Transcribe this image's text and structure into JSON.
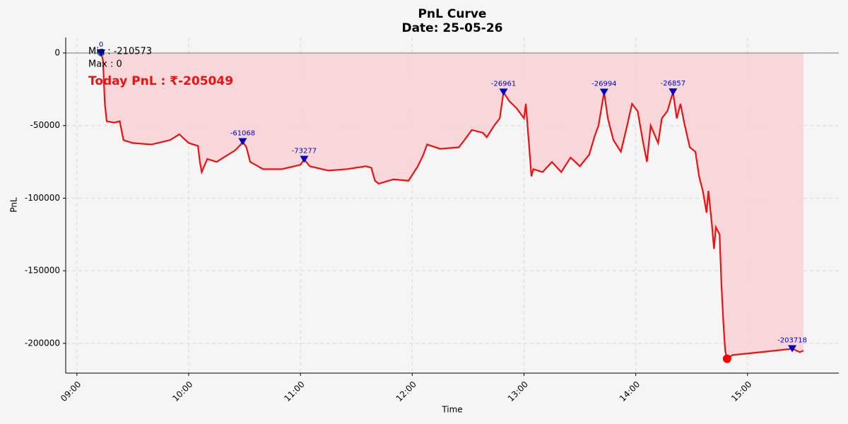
{
  "chart_data": {
    "type": "line",
    "title": "PnL Curve",
    "subtitle": "Date: 25-05-26",
    "x_label": "Time",
    "y_label": "PnL",
    "color": "#ee1111",
    "fill_color": "#f7d4d7",
    "grid": true,
    "annotations": [
      "Min : -210573",
      "Max : 0"
    ],
    "highlight": "Today PnL : ₹-205049",
    "x": [
      "09:13",
      "09:14",
      "09:15",
      "09:16",
      "09:20",
      "09:23",
      "09:25",
      "09:30",
      "09:40",
      "09:50",
      "09:55",
      "10:00",
      "10:05",
      "10:06",
      "10:07",
      "10:10",
      "10:15",
      "10:20",
      "10:25",
      "10:28",
      "10:29",
      "10:31",
      "10:33",
      "10:40",
      "10:50",
      "11:00",
      "11:02",
      "11:05",
      "11:15",
      "11:25",
      "11:35",
      "11:38",
      "11:40",
      "11:42",
      "11:50",
      "11:58",
      "12:03",
      "12:06",
      "12:08",
      "12:15",
      "12:25",
      "12:28",
      "12:32",
      "12:38",
      "12:40",
      "12:44",
      "12:47",
      "12:48",
      "12:49",
      "12:52",
      "12:56",
      "13:00",
      "13:01",
      "13:04",
      "13:05",
      "13:10",
      "13:15",
      "13:20",
      "13:25",
      "13:30",
      "13:35",
      "13:38",
      "13:40",
      "13:43",
      "13:45",
      "13:48",
      "13:52",
      "13:55",
      "13:58",
      "14:01",
      "14:04",
      "14:06",
      "14:08",
      "14:12",
      "14:14",
      "14:17",
      "14:20",
      "14:22",
      "14:24",
      "14:26",
      "14:29",
      "14:32",
      "14:34",
      "14:36",
      "14:38",
      "14:39",
      "14:41",
      "14:42",
      "14:43",
      "14:45",
      "14:46",
      "14:47",
      "14:48",
      "14:49",
      "14:52",
      "15:00",
      "15:15",
      "15:24",
      "15:28",
      "15:30"
    ],
    "values": [
      0,
      -5000,
      -35000,
      -47000,
      -48000,
      -47000,
      -60000,
      -62000,
      -63000,
      -60000,
      -56000,
      -62000,
      -64000,
      -75000,
      -82000,
      -73000,
      -75000,
      -71000,
      -67000,
      -63000,
      -61068,
      -65000,
      -75000,
      -80000,
      -80000,
      -77000,
      -73277,
      -78000,
      -81000,
      -80000,
      -78000,
      -79000,
      -88000,
      -90000,
      -87000,
      -88000,
      -78000,
      -70000,
      -63000,
      -66000,
      -65000,
      -60000,
      -53000,
      -55000,
      -58000,
      -50000,
      -45000,
      -36000,
      -26961,
      -33000,
      -38000,
      -45000,
      -35000,
      -85000,
      -80000,
      -82000,
      -75000,
      -82000,
      -72000,
      -78000,
      -70000,
      -57000,
      -50000,
      -26994,
      -45000,
      -60000,
      -68000,
      -52000,
      -35000,
      -40000,
      -62000,
      -75000,
      -50000,
      -62000,
      -45000,
      -40000,
      -26857,
      -45000,
      -35000,
      -48000,
      -65000,
      -68000,
      -85000,
      -95000,
      -110000,
      -95000,
      -120000,
      -135000,
      -120000,
      -125000,
      -160000,
      -185000,
      -205000,
      -210573,
      -208000,
      -207000,
      -205000,
      -203718,
      -206000,
      -205049
    ],
    "peaks": {
      "x": [
        "09:13",
        "10:29",
        "11:02",
        "12:49",
        "13:43",
        "14:20",
        "15:24"
      ],
      "values": [
        0,
        -61068,
        -73277,
        -26961,
        -26994,
        -26857,
        -203718
      ],
      "color": "#0000cc"
    },
    "min_point": {
      "x": "14:49",
      "value": -210573,
      "color": "#ff0000"
    },
    "start_point": {
      "x": "09:13",
      "value": 0,
      "color": "#2e8b57"
    },
    "xlim": [
      "08:54",
      "15:49"
    ],
    "xticks": [
      "09:00",
      "10:00",
      "11:00",
      "12:00",
      "13:00",
      "14:00",
      "15:00"
    ],
    "ylim": [
      -220500,
      10700
    ],
    "yticks": [
      0,
      -50000,
      -100000,
      -150000,
      -200000
    ]
  }
}
